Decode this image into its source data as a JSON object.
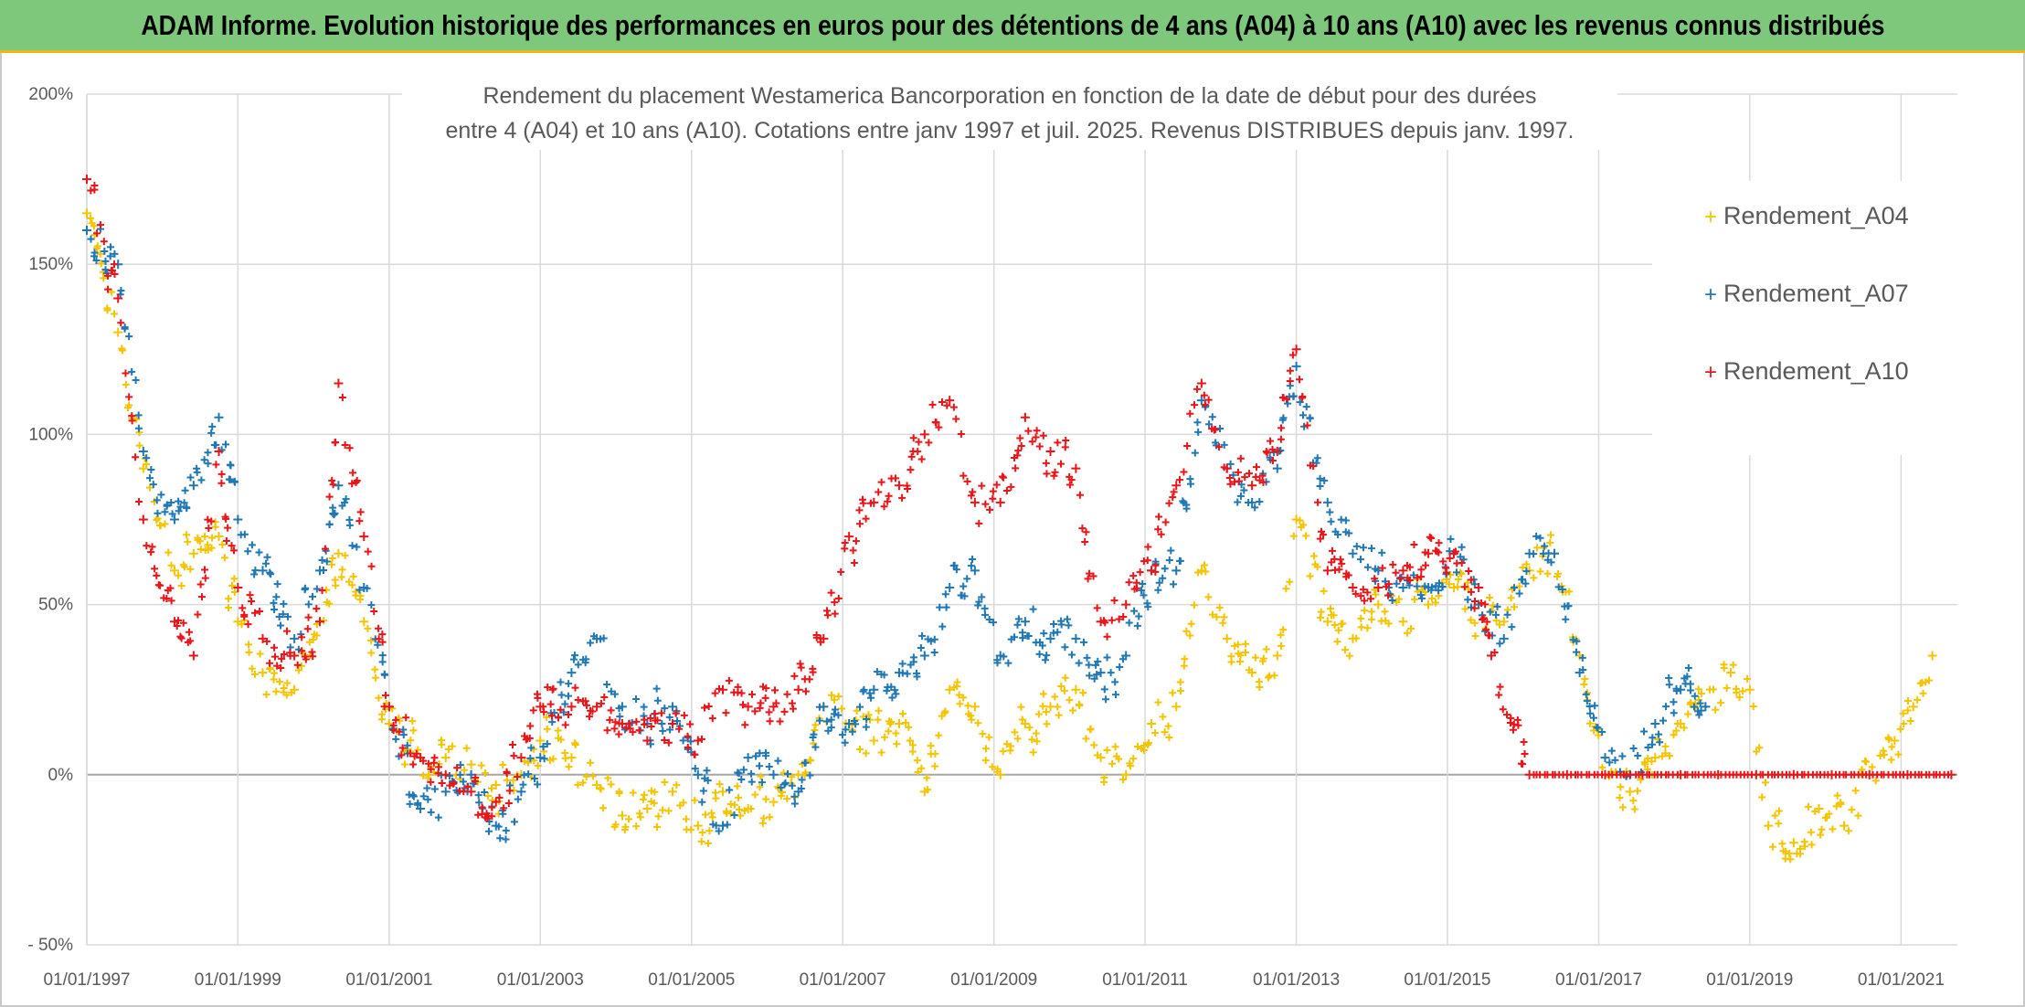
{
  "banner": {
    "title": "ADAM Informe. Evolution historique des performances en euros pour des détentions de 4 ans (A04) à 10 ans (A10) avec les revenus connus distribués"
  },
  "colors": {
    "banner_bg": "#7dc87a",
    "banner_border": "#e8b917",
    "A04": "#f5c400",
    "A07": "#1f77b4",
    "A10": "#e8161a",
    "grid": "#d9d9d9",
    "text": "#595959"
  },
  "chart_data": {
    "type": "scatter",
    "marker": "plus",
    "title_lines": [
      "Rendement du placement Westamerica Bancorporation en fonction de la date de début pour des durées",
      "entre 4 (A04) et 10 ans (A10). Cotations entre janv 1997 et juil. 2025. Revenus DISTRIBUES depuis janv. 1997."
    ],
    "x_ticks": [
      "01/01/1997",
      "01/01/1999",
      "01/01/2001",
      "01/01/2003",
      "01/01/2005",
      "01/01/2007",
      "01/01/2009",
      "01/01/2011",
      "01/01/2013",
      "01/01/2015",
      "01/01/2017",
      "01/01/2019",
      "01/01/2021"
    ],
    "xlim": [
      "1997-01-01",
      "2021-09-30"
    ],
    "y_ticks": [
      "200%",
      "150%",
      "100%",
      "50%",
      "0%",
      "- 50%"
    ],
    "ylim": [
      -50,
      200
    ],
    "y_unit": "%",
    "legend_position": "right",
    "series": [
      {
        "name": "Rendement_A04",
        "x": [
          "1997-01-01",
          "1997-06-01",
          "1997-10-01",
          "1998-03-01",
          "1998-06-01",
          "1998-10-01",
          "1999-01-01",
          "1999-05-01",
          "1999-10-01",
          "2000-02-01",
          "2000-05-01",
          "2000-09-01",
          "2001-01-01",
          "2001-06-01",
          "2001-10-01",
          "2002-02-01",
          "2002-06-01",
          "2002-10-01",
          "2003-01-01",
          "2003-06-01",
          "2003-10-01",
          "2004-02-01",
          "2004-06-01",
          "2004-10-01",
          "2005-02-01",
          "2005-06-01",
          "2005-10-01",
          "2006-02-01",
          "2006-06-01",
          "2006-10-01",
          "2007-02-01",
          "2007-06-01",
          "2007-10-01",
          "2008-02-01",
          "2008-06-01",
          "2008-10-01",
          "2009-02-01",
          "2009-06-01",
          "2009-10-01",
          "2010-02-01",
          "2010-06-01",
          "2010-10-01",
          "2011-02-01",
          "2011-06-01",
          "2011-10-01",
          "2012-02-01",
          "2012-06-01",
          "2012-10-01",
          "2013-01-01",
          "2013-06-01",
          "2013-10-01",
          "2014-02-01",
          "2014-06-01",
          "2014-10-01",
          "2015-02-01",
          "2015-06-01",
          "2015-10-01",
          "2016-02-01",
          "2016-06-01",
          "2016-10-01",
          "2017-02-01",
          "2017-06-01",
          "2017-10-01",
          "2018-02-01",
          "2018-06-01",
          "2018-10-01",
          "2019-01-01",
          "2019-04-01",
          "2019-08-01",
          "2019-12-01",
          "2020-04-01",
          "2020-08-01",
          "2020-12-01",
          "2021-03-01",
          "2021-06-01"
        ],
        "y": [
          165,
          130,
          90,
          60,
          65,
          70,
          45,
          30,
          25,
          45,
          65,
          45,
          15,
          5,
          5,
          3,
          -3,
          0,
          10,
          5,
          -3,
          -12,
          -10,
          -5,
          -15,
          -5,
          -10,
          -8,
          0,
          20,
          15,
          10,
          15,
          -5,
          25,
          20,
          0,
          15,
          20,
          25,
          5,
          0,
          15,
          20,
          60,
          40,
          30,
          35,
          75,
          45,
          40,
          50,
          45,
          50,
          55,
          50,
          45,
          60,
          65,
          35,
          0,
          -5,
          5,
          15,
          20,
          30,
          25,
          -15,
          -20,
          -10,
          -15,
          0,
          10,
          20,
          35
        ]
      },
      {
        "name": "Rendement_A07",
        "x": [
          "1997-01-01",
          "1997-06-01",
          "1997-10-01",
          "1998-03-01",
          "1998-06-01",
          "1998-10-01",
          "1999-01-01",
          "1999-05-01",
          "1999-10-01",
          "2000-02-01",
          "2000-05-01",
          "2000-09-01",
          "2001-01-01",
          "2001-06-01",
          "2001-10-01",
          "2002-02-01",
          "2002-06-01",
          "2002-10-01",
          "2003-01-01",
          "2003-06-01",
          "2003-10-01",
          "2004-02-01",
          "2004-06-01",
          "2004-10-01",
          "2005-02-01",
          "2005-06-01",
          "2005-10-01",
          "2006-02-01",
          "2006-06-01",
          "2006-10-01",
          "2007-02-01",
          "2007-06-01",
          "2007-10-01",
          "2008-02-01",
          "2008-06-01",
          "2008-10-01",
          "2009-02-01",
          "2009-06-01",
          "2009-10-01",
          "2010-02-01",
          "2010-06-01",
          "2010-10-01",
          "2011-02-01",
          "2011-06-01",
          "2011-10-01",
          "2012-02-01",
          "2012-06-01",
          "2012-10-01",
          "2013-01-01",
          "2013-06-01",
          "2013-10-01",
          "2014-02-01",
          "2014-06-01",
          "2014-10-01",
          "2015-02-01",
          "2015-06-01",
          "2015-10-01",
          "2016-02-01",
          "2016-06-01",
          "2016-10-01",
          "2017-02-01",
          "2017-06-01",
          "2017-10-01",
          "2018-02-01",
          "2018-06-01"
        ],
        "y": [
          160,
          150,
          95,
          75,
          85,
          105,
          75,
          60,
          40,
          60,
          85,
          55,
          20,
          -10,
          -5,
          0,
          -15,
          -5,
          5,
          30,
          40,
          20,
          15,
          20,
          0,
          -15,
          5,
          0,
          -5,
          20,
          15,
          25,
          30,
          35,
          55,
          60,
          35,
          45,
          40,
          40,
          30,
          35,
          60,
          60,
          110,
          90,
          80,
          90,
          120,
          80,
          65,
          60,
          55,
          55,
          65,
          50,
          40,
          65,
          65,
          30,
          5,
          0,
          15,
          25,
          20
        ]
      },
      {
        "name": "Rendement_A10",
        "x": [
          "1997-01-01",
          "1997-06-01",
          "1997-10-01",
          "1998-03-01",
          "1998-06-01",
          "1998-10-01",
          "1999-01-01",
          "1999-05-01",
          "1999-10-01",
          "2000-02-01",
          "2000-05-01",
          "2000-09-01",
          "2001-01-01",
          "2001-06-01",
          "2001-10-01",
          "2002-02-01",
          "2002-06-01",
          "2002-10-01",
          "2003-01-01",
          "2003-06-01",
          "2003-10-01",
          "2004-02-01",
          "2004-06-01",
          "2004-10-01",
          "2005-02-01",
          "2005-06-01",
          "2005-10-01",
          "2006-02-01",
          "2006-06-01",
          "2006-10-01",
          "2007-02-01",
          "2007-06-01",
          "2007-10-01",
          "2008-02-01",
          "2008-06-01",
          "2008-10-01",
          "2009-02-01",
          "2009-06-01",
          "2009-10-01",
          "2010-02-01",
          "2010-06-01",
          "2010-10-01",
          "2011-02-01",
          "2011-06-01",
          "2011-10-01",
          "2012-02-01",
          "2012-06-01",
          "2012-10-01",
          "2013-01-01",
          "2013-06-01",
          "2013-10-01",
          "2014-02-01",
          "2014-06-01",
          "2014-10-01",
          "2015-02-01",
          "2015-06-01",
          "2015-08-01",
          "2016-02-01",
          "2016-08-01",
          "2017-02-01",
          "2017-08-01",
          "2018-02-01",
          "2018-08-01",
          "2019-02-01",
          "2019-08-01",
          "2020-02-01",
          "2020-08-01",
          "2021-02-01",
          "2021-09-01"
        ],
        "y": [
          175,
          140,
          75,
          45,
          35,
          95,
          55,
          40,
          35,
          45,
          115,
          70,
          20,
          5,
          0,
          -5,
          -8,
          5,
          20,
          20,
          20,
          15,
          10,
          15,
          10,
          25,
          20,
          20,
          25,
          40,
          70,
          80,
          85,
          100,
          110,
          80,
          80,
          105,
          95,
          90,
          45,
          50,
          60,
          85,
          115,
          90,
          85,
          95,
          125,
          60,
          55,
          55,
          60,
          65,
          65,
          55,
          35,
          0,
          0,
          0,
          0,
          0,
          0,
          0,
          0,
          0,
          0,
          0,
          0
        ]
      }
    ]
  }
}
